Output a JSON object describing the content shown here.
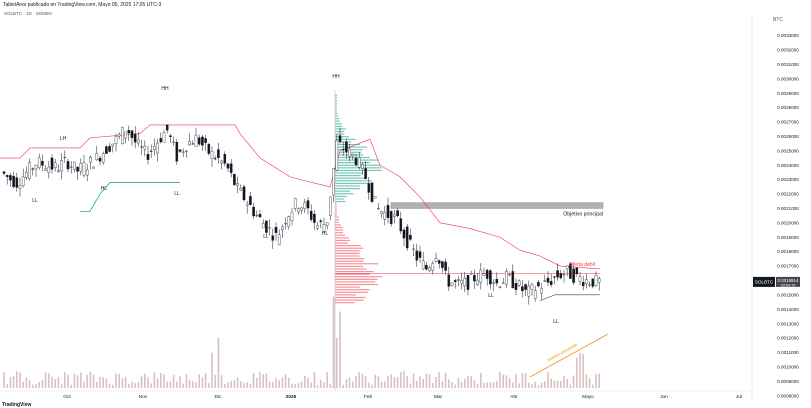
{
  "header": {
    "text": "TablelAres publicado en TradingView.com, Mayo 05, 2025 17:05 UTC-3"
  },
  "ticker": "SOLBTC · 1D · GEMINI",
  "currency": "BTC",
  "footer": "TradingView",
  "colors": {
    "up": "#ffffff",
    "down": "#131722",
    "supertrend_down": "#f23645",
    "supertrend_up": "#089981",
    "volume": "#c9a7a7",
    "vp_red": "#f23645",
    "vp_green": "#089981",
    "zone": "#9e9e9e",
    "annotation": "#f7931a"
  },
  "chart_data": {
    "type": "candlestick",
    "symbol": "SOLBTC",
    "timeframe": "1D",
    "exchange": "GEMINI",
    "ylim": [
      0.00077,
      0.00345
    ],
    "y_ticks": [
      "0.0033000",
      "0.0032000",
      "0.0031000",
      "0.0030000",
      "0.0029000",
      "0.0028000",
      "0.0027000",
      "0.0026000",
      "0.0025000",
      "0.0024000",
      "0.0023000",
      "0.0022000",
      "0.0021000",
      "0.0020000",
      "0.0019000",
      "0.0018000",
      "0.0017000",
      "0.0016000",
      "0.0015000",
      "0.0014000",
      "0.0013000",
      "0.0012000",
      "0.0011000",
      "0.0010000",
      "0.0009000",
      "0.0008000"
    ],
    "x_ticks": [
      "Oct",
      "Nov",
      "Dic",
      "2025",
      "Feb",
      "Mar",
      "Abr",
      "Mayo",
      "Jun",
      "Jul"
    ],
    "price_path": [
      [
        0,
        0.00238
      ],
      [
        10,
        0.00232
      ],
      [
        20,
        0.00228
      ],
      [
        30,
        0.00235
      ],
      [
        40,
        0.00242
      ],
      [
        50,
        0.0024
      ],
      [
        60,
        0.00238
      ],
      [
        70,
        0.00243
      ],
      [
        80,
        0.00236
      ],
      [
        90,
        0.0024
      ],
      [
        100,
        0.00245
      ],
      [
        110,
        0.00252
      ],
      [
        120,
        0.00258
      ],
      [
        130,
        0.00266
      ],
      [
        140,
        0.00254
      ],
      [
        150,
        0.00247
      ],
      [
        160,
        0.00256
      ],
      [
        170,
        0.00265
      ],
      [
        180,
        0.00246
      ],
      [
        190,
        0.00255
      ],
      [
        200,
        0.00259
      ],
      [
        210,
        0.0025
      ],
      [
        220,
        0.00245
      ],
      [
        230,
        0.00239
      ],
      [
        240,
        0.00224
      ],
      [
        250,
        0.00215
      ],
      [
        260,
        0.00205
      ],
      [
        270,
        0.00197
      ],
      [
        280,
        0.0019
      ],
      [
        290,
        0.00205
      ],
      [
        300,
        0.00214
      ],
      [
        310,
        0.0021
      ],
      [
        320,
        0.00198
      ],
      [
        330,
        0.002
      ],
      [
        340,
        0.00255
      ],
      [
        350,
        0.0025
      ],
      [
        360,
        0.00244
      ],
      [
        370,
        0.0023
      ],
      [
        380,
        0.0021
      ],
      [
        390,
        0.00206
      ],
      [
        400,
        0.00202
      ],
      [
        410,
        0.00188
      ],
      [
        420,
        0.00176
      ],
      [
        430,
        0.00168
      ],
      [
        440,
        0.0018
      ],
      [
        450,
        0.0016
      ],
      [
        460,
        0.00157
      ],
      [
        470,
        0.00158
      ],
      [
        480,
        0.00163
      ],
      [
        490,
        0.00165
      ],
      [
        500,
        0.00158
      ],
      [
        510,
        0.00162
      ],
      [
        520,
        0.00157
      ],
      [
        530,
        0.00151
      ],
      [
        540,
        0.00155
      ],
      [
        550,
        0.00158
      ],
      [
        560,
        0.00163
      ],
      [
        570,
        0.00166
      ],
      [
        580,
        0.00162
      ],
      [
        590,
        0.0016
      ],
      [
        600,
        0.00159
      ]
    ],
    "current_price": "0.0015914",
    "countdown": "03:54:15",
    "price_label": "SOLBTC",
    "zones": [
      {
        "label": "Objetivo principal",
        "y_top": 0.00214,
        "y_bottom": 0.0021
      }
    ],
    "annotations": [
      {
        "text": "Oferta débil",
        "y": 0.00165
      },
      {
        "text": "Interés creciente"
      }
    ],
    "swing_labels": [
      "LH",
      "LL",
      "HL",
      "HH",
      "LL",
      "HH",
      "LL",
      "HL",
      "LL",
      "LL"
    ]
  }
}
